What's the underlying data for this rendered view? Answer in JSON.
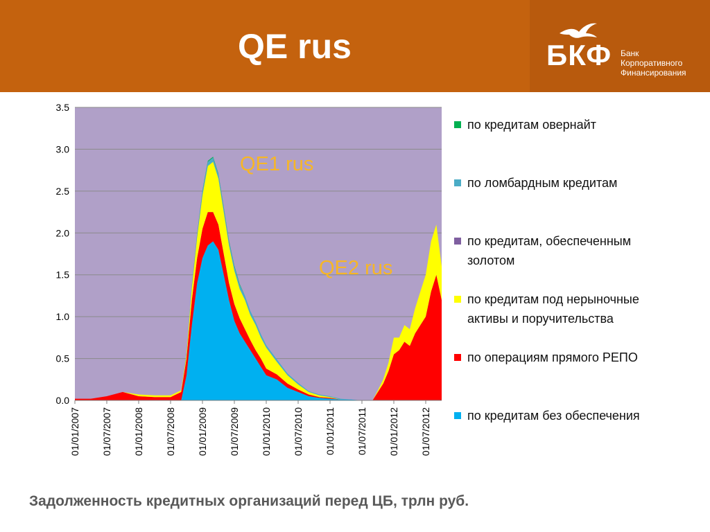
{
  "header": {
    "title": "QE rus",
    "logo_abbr": "БКФ",
    "logo_lines": [
      "Банк",
      "Корпоративного",
      "Финансирования"
    ]
  },
  "caption": "Задолженность кредитных организаций перед ЦБ, трлн руб.",
  "colors": {
    "header_bg": "#c4620e",
    "plot_bg": "#b0a0c8",
    "annotation": "#f7b626"
  },
  "chart_data": {
    "type": "area",
    "stacked": true,
    "title": "",
    "xlabel": "",
    "ylabel": "",
    "ylim": [
      0,
      3.5
    ],
    "y_ticks": [
      "0.0",
      "0.5",
      "1.0",
      "1.5",
      "2.0",
      "2.5",
      "3.0",
      "3.5"
    ],
    "grid": true,
    "legend_position": "right",
    "x_tick_labels": [
      "01/01/2007",
      "01/07/2007",
      "01/01/2008",
      "01/07/2008",
      "01/01/2009",
      "01/07/2009",
      "01/01/2010",
      "01/07/2010",
      "01/01/2011",
      "01/07/2011",
      "01/01/2012",
      "01/07/2012"
    ],
    "x": [
      "2007-01",
      "2007-04",
      "2007-07",
      "2007-10",
      "2008-01",
      "2008-04",
      "2008-07",
      "2008-09",
      "2008-10",
      "2008-11",
      "2008-12",
      "2009-01",
      "2009-02",
      "2009-03",
      "2009-04",
      "2009-05",
      "2009-06",
      "2009-07",
      "2009-08",
      "2009-09",
      "2009-10",
      "2009-11",
      "2009-12",
      "2010-01",
      "2010-03",
      "2010-05",
      "2010-07",
      "2010-09",
      "2010-11",
      "2011-01",
      "2011-03",
      "2011-05",
      "2011-07",
      "2011-09",
      "2011-10",
      "2011-11",
      "2011-12",
      "2012-01",
      "2012-02",
      "2012-03",
      "2012-04",
      "2012-05",
      "2012-06",
      "2012-07",
      "2012-08",
      "2012-09",
      "2012-10"
    ],
    "series": [
      {
        "name": "по кредитам без обеспечения",
        "color": "#00b0f0",
        "values": [
          0,
          0,
          0,
          0,
          0,
          0,
          0,
          0,
          0.3,
          0.9,
          1.4,
          1.7,
          1.85,
          1.9,
          1.8,
          1.5,
          1.2,
          0.95,
          0.8,
          0.7,
          0.6,
          0.5,
          0.4,
          0.3,
          0.25,
          0.15,
          0.1,
          0.05,
          0.03,
          0.02,
          0.01,
          0.01,
          0,
          0,
          0,
          0,
          0,
          0,
          0,
          0,
          0,
          0,
          0,
          0,
          0,
          0,
          0
        ]
      },
      {
        "name": "по операциям прямого РЕПО",
        "color": "#ff0000",
        "values": [
          0.02,
          0.02,
          0.05,
          0.1,
          0.05,
          0.04,
          0.04,
          0.1,
          0.2,
          0.3,
          0.3,
          0.35,
          0.4,
          0.35,
          0.3,
          0.25,
          0.2,
          0.2,
          0.18,
          0.15,
          0.12,
          0.1,
          0.1,
          0.08,
          0.06,
          0.05,
          0.03,
          0.02,
          0.01,
          0.01,
          0,
          0,
          0,
          0,
          0.1,
          0.2,
          0.35,
          0.55,
          0.6,
          0.7,
          0.65,
          0.8,
          0.9,
          1.0,
          1.3,
          1.5,
          1.2
        ]
      },
      {
        "name": "по кредитам под нерыночные активы и поручительства",
        "color": "#ffff00",
        "values": [
          0,
          0,
          0,
          0,
          0.02,
          0.02,
          0.02,
          0.02,
          0.05,
          0.15,
          0.25,
          0.4,
          0.55,
          0.6,
          0.55,
          0.5,
          0.45,
          0.4,
          0.35,
          0.35,
          0.3,
          0.3,
          0.25,
          0.25,
          0.15,
          0.1,
          0.06,
          0.03,
          0.02,
          0.01,
          0,
          0,
          0,
          0,
          0.02,
          0.05,
          0.1,
          0.2,
          0.15,
          0.2,
          0.2,
          0.3,
          0.4,
          0.5,
          0.6,
          0.6,
          0.4
        ]
      },
      {
        "name": "по кредитам, обеспеченным золотом",
        "color": "#7f5fa0",
        "values": [
          0,
          0,
          0,
          0,
          0,
          0,
          0,
          0,
          0,
          0,
          0,
          0,
          0,
          0,
          0,
          0,
          0,
          0,
          0,
          0,
          0,
          0,
          0,
          0,
          0,
          0,
          0,
          0,
          0,
          0,
          0,
          0,
          0,
          0,
          0,
          0,
          0,
          0,
          0,
          0,
          0,
          0,
          0,
          0,
          0,
          0,
          0
        ]
      },
      {
        "name": "по ломбардным кредитам",
        "color": "#4bacc6",
        "values": [
          0,
          0,
          0,
          0,
          0,
          0,
          0,
          0,
          0.01,
          0.02,
          0.03,
          0.05,
          0.05,
          0.05,
          0.05,
          0.05,
          0.05,
          0.05,
          0.05,
          0.05,
          0.05,
          0.04,
          0.04,
          0.03,
          0.03,
          0.02,
          0.02,
          0.01,
          0.01,
          0.01,
          0.01,
          0,
          0,
          0,
          0,
          0,
          0,
          0,
          0,
          0,
          0,
          0,
          0,
          0,
          0,
          0,
          0
        ]
      },
      {
        "name": "по кредитам овернайт",
        "color": "#00b050",
        "values": [
          0,
          0,
          0,
          0,
          0,
          0,
          0,
          0,
          0.01,
          0.01,
          0.01,
          0.01,
          0.01,
          0.01,
          0.01,
          0.01,
          0.01,
          0.01,
          0.01,
          0,
          0,
          0,
          0,
          0,
          0,
          0,
          0,
          0,
          0,
          0,
          0,
          0,
          0,
          0,
          0,
          0,
          0,
          0,
          0,
          0,
          0,
          0,
          0,
          0,
          0,
          0,
          0
        ]
      }
    ],
    "annotations": [
      "QE1 rus",
      "QE2 rus"
    ]
  }
}
